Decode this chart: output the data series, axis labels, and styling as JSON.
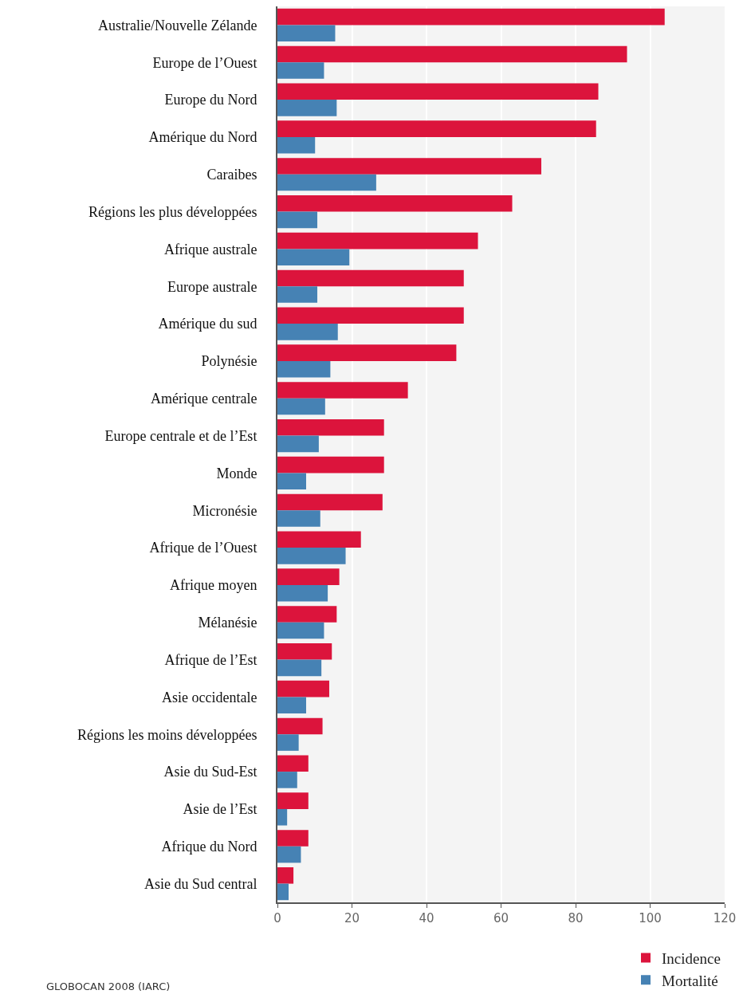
{
  "chart_data": {
    "type": "bar",
    "orientation": "horizontal",
    "categories": [
      "Australie/Nouvelle Zélande",
      "Europe de l’Ouest",
      "Europe du Nord",
      "Amérique du Nord",
      "Caraibes",
      "Régions les plus développées",
      "Afrique australe",
      "Europe australe",
      "Amérique du sud",
      "Polynésie",
      "Amérique centrale",
      "Europe centrale et de l’Est",
      "Monde",
      "Micronésie",
      "Afrique de l’Ouest",
      "Afrique moyen",
      "Mélanésie",
      "Afrique de l’Est",
      "Asie occidentale",
      "Régions les moins développées",
      "Asie du Sud-Est",
      "Asie de l’Est",
      "Afrique du Nord",
      "Asie du Sud central"
    ],
    "series": [
      {
        "name": "Incidence",
        "color": "#dc143c",
        "values": [
          103.9,
          93.8,
          86.1,
          85.5,
          70.8,
          63.0,
          53.8,
          50.0,
          50.0,
          48.0,
          35.0,
          28.6,
          28.6,
          28.2,
          22.4,
          16.6,
          15.9,
          14.6,
          13.9,
          12.1,
          8.3,
          8.3,
          8.3,
          4.3
        ]
      },
      {
        "name": "Mortalité",
        "color": "#4682b4",
        "values": [
          15.5,
          12.5,
          15.9,
          10.1,
          26.5,
          10.7,
          19.3,
          10.7,
          16.2,
          14.2,
          12.8,
          11.1,
          7.7,
          11.5,
          18.3,
          13.5,
          12.5,
          11.8,
          7.7,
          5.7,
          5.3,
          2.6,
          6.3,
          3.0
        ]
      }
    ],
    "xlim": [
      0,
      120
    ],
    "xticks": [
      0,
      20,
      40,
      60,
      80,
      100,
      120
    ],
    "grid": "x",
    "legend": "bottom right",
    "annotations": [
      "GLOBOCAN 2008 (IARC)"
    ]
  }
}
